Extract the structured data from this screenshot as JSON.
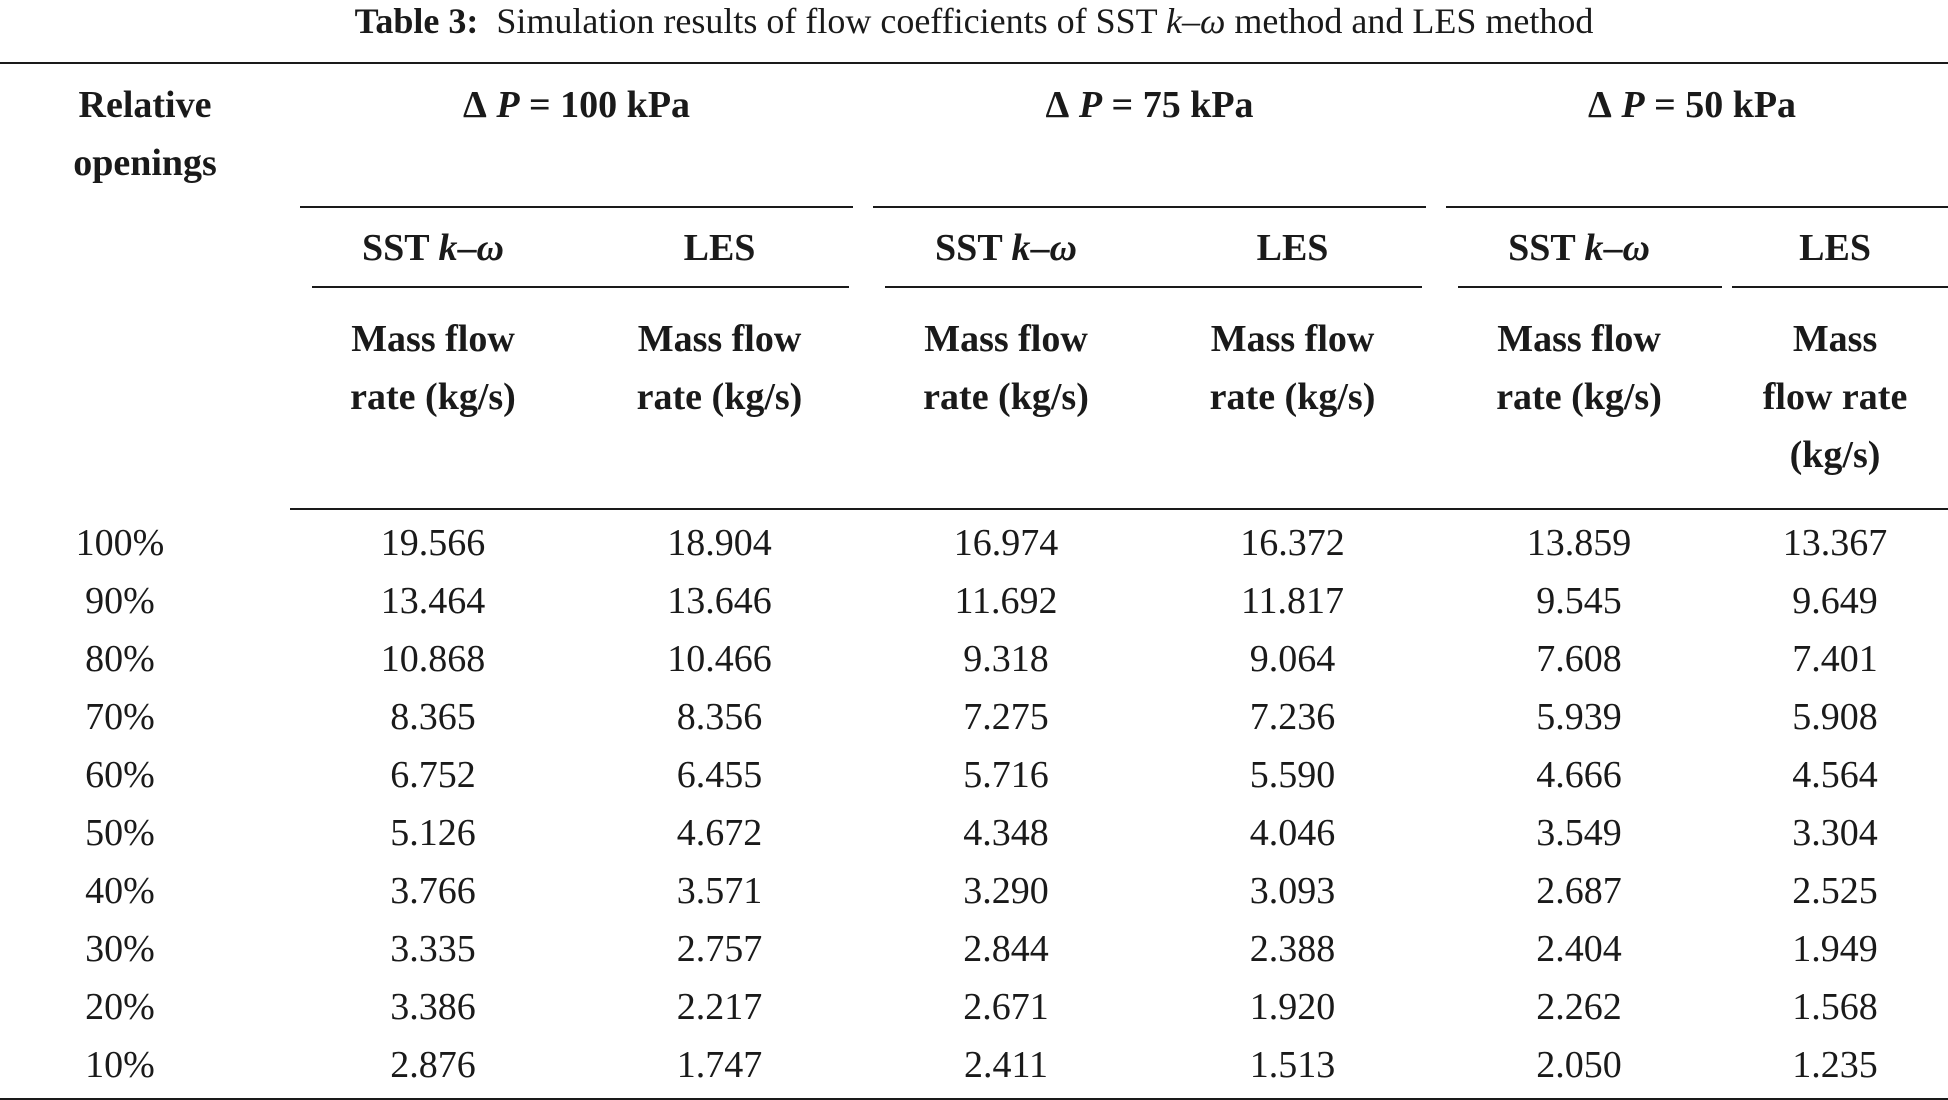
{
  "caption": {
    "label": "Table 3:",
    "text_before": "Simulation results of flow coefficients of SST ",
    "k": "k",
    "dash": "–",
    "omega": "ω",
    "text_after": " method and LES method"
  },
  "header": {
    "relative_line1": "Relative",
    "relative_line2": "openings",
    "groups": [
      {
        "delta": "Δ",
        "p": "P",
        "value": " = 100 kPa"
      },
      {
        "delta": "Δ",
        "p": "P",
        "value": " = 75 kPa"
      },
      {
        "delta": "Δ",
        "p": "P",
        "value": " = 50 kPa"
      }
    ],
    "methods": {
      "sst_prefix": "SST ",
      "k": "k",
      "dash": "–",
      "omega": "ω",
      "les": "LES"
    },
    "mass_line1": "Mass flow",
    "mass_line2": "rate (kg/s)",
    "mass_alt_line1": "Mass",
    "mass_alt_line2": "flow rate",
    "mass_alt_line3": "(kg/s)"
  },
  "rows": [
    {
      "opening": "100%",
      "v": [
        "19.566",
        "18.904",
        "16.974",
        "16.372",
        "13.859",
        "13.367"
      ]
    },
    {
      "opening": "90%",
      "v": [
        "13.464",
        "13.646",
        "11.692",
        "11.817",
        "9.545",
        "9.649"
      ]
    },
    {
      "opening": "80%",
      "v": [
        "10.868",
        "10.466",
        "9.318",
        "9.064",
        "7.608",
        "7.401"
      ]
    },
    {
      "opening": "70%",
      "v": [
        "8.365",
        "8.356",
        "7.275",
        "7.236",
        "5.939",
        "5.908"
      ]
    },
    {
      "opening": "60%",
      "v": [
        "6.752",
        "6.455",
        "5.716",
        "5.590",
        "4.666",
        "4.564"
      ]
    },
    {
      "opening": "50%",
      "v": [
        "5.126",
        "4.672",
        "4.348",
        "4.046",
        "3.549",
        "3.304"
      ]
    },
    {
      "opening": "40%",
      "v": [
        "3.766",
        "3.571",
        "3.290",
        "3.093",
        "2.687",
        "2.525"
      ]
    },
    {
      "opening": "30%",
      "v": [
        "3.335",
        "2.757",
        "2.844",
        "2.388",
        "2.404",
        "1.949"
      ]
    },
    {
      "opening": "20%",
      "v": [
        "3.386",
        "2.217",
        "2.671",
        "1.920",
        "2.262",
        "1.568"
      ]
    },
    {
      "opening": "10%",
      "v": [
        "2.876",
        "1.747",
        "2.411",
        "1.513",
        "2.050",
        "1.235"
      ]
    }
  ]
}
